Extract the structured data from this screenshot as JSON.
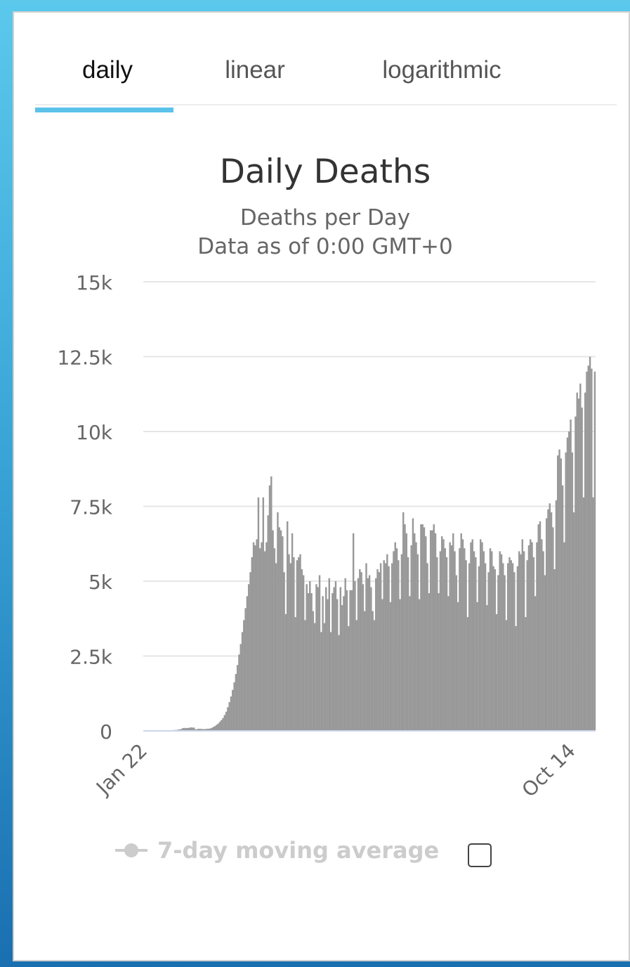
{
  "tabs": [
    {
      "label": "daily",
      "active": true
    },
    {
      "label": "linear",
      "active": false
    },
    {
      "label": "logarithmic",
      "active": false
    }
  ],
  "legend": {
    "label": "7-day moving average",
    "color": "#cccccc"
  },
  "checkbox": {
    "checked": false
  },
  "colors": {
    "bars": "#999999",
    "accent": "#5bc2ea",
    "grid": "#e6e6e6"
  },
  "chart_data": {
    "type": "bar",
    "title": "Daily Deaths",
    "subtitle": [
      "Deaths per Day",
      "Data as of 0:00 GMT+0"
    ],
    "ylim": [
      0,
      15000
    ],
    "yticks": [
      {
        "value": 0,
        "label": "0"
      },
      {
        "value": 2500,
        "label": "2.5k"
      },
      {
        "value": 5000,
        "label": "5k"
      },
      {
        "value": 7500,
        "label": "7.5k"
      },
      {
        "value": 10000,
        "label": "10k"
      },
      {
        "value": 12500,
        "label": "12.5k"
      },
      {
        "value": 15000,
        "label": "15k"
      }
    ],
    "xticks": [
      {
        "index": 0,
        "label": "Jan 22"
      },
      {
        "index": 266,
        "label": "Oct 14"
      }
    ],
    "grid": true,
    "series": [
      {
        "values": [
          0,
          0,
          0,
          0,
          0,
          0,
          0,
          0,
          0,
          0,
          0,
          0,
          0,
          0,
          0,
          0,
          0,
          0,
          0,
          30,
          30,
          40,
          50,
          60,
          90,
          100,
          90,
          100,
          100,
          120,
          110,
          110,
          50,
          60,
          70,
          70,
          60,
          60,
          60,
          70,
          70,
          80,
          100,
          130,
          160,
          200,
          240,
          300,
          360,
          430,
          530,
          640,
          790,
          960,
          1150,
          1370,
          1620,
          1900,
          2200,
          2550,
          2900,
          3300,
          3700,
          4100,
          4500,
          4900,
          5300,
          5800,
          6300,
          6200,
          6400,
          7800,
          6100,
          6300,
          7800,
          6000,
          6300,
          7200,
          8200,
          8500,
          6700,
          6100,
          5600,
          7300,
          6800,
          6700,
          6500,
          5300,
          3900,
          7000,
          5900,
          5600,
          6600,
          5800,
          3800,
          5700,
          5800,
          5900,
          5400,
          5200,
          3700,
          4900,
          4600,
          5000,
          4600,
          4000,
          3600,
          4900,
          4800,
          5200,
          3300,
          4500,
          3600,
          4800,
          4400,
          5100,
          3300,
          4600,
          4800,
          5000,
          4400,
          3200,
          4800,
          4200,
          4500,
          5100,
          4700,
          3500,
          4700,
          4700,
          6600,
          5000,
          3700,
          5100,
          5400,
          5300,
          4900,
          4000,
          5600,
          5100,
          5200,
          4800,
          4000,
          3700,
          5100,
          5400,
          5300,
          5600,
          4400,
          5700,
          5600,
          5900,
          5500,
          4300,
          5600,
          6000,
          6300,
          6100,
          5700,
          4400,
          5900,
          7300,
          6900,
          6600,
          5800,
          4500,
          6200,
          7100,
          6600,
          6300,
          5900,
          4400,
          6900,
          6900,
          6800,
          6500,
          5600,
          4600,
          6700,
          6700,
          6900,
          6600,
          5800,
          4600,
          6000,
          6500,
          6400,
          6100,
          5800,
          4500,
          6300,
          6200,
          6600,
          6000,
          5200,
          4300,
          6100,
          6600,
          6400,
          6100,
          5700,
          3800,
          5600,
          6300,
          6400,
          6000,
          5800,
          4300,
          5500,
          6400,
          6300,
          6000,
          5600,
          4200,
          5300,
          6100,
          6000,
          5500,
          5400,
          3900,
          5200,
          6000,
          5900,
          5600,
          5200,
          3700,
          5600,
          5800,
          5700,
          5600,
          5300,
          3500,
          5500,
          6000,
          5900,
          6400,
          6000,
          3800,
          5700,
          6200,
          6400,
          6300,
          5800,
          4500,
          6300,
          6900,
          7000,
          6400,
          6000,
          5200,
          7100,
          7400,
          7600,
          7300,
          6800,
          5400,
          7700,
          9200,
          9400,
          9100,
          8200,
          6300,
          9300,
          9800,
          10000,
          10400,
          9300,
          7300,
          10500,
          11300,
          11100,
          11600,
          10800,
          7800,
          11300,
          12000,
          12200,
          12500,
          12100,
          7800,
          12000
        ]
      }
    ]
  }
}
